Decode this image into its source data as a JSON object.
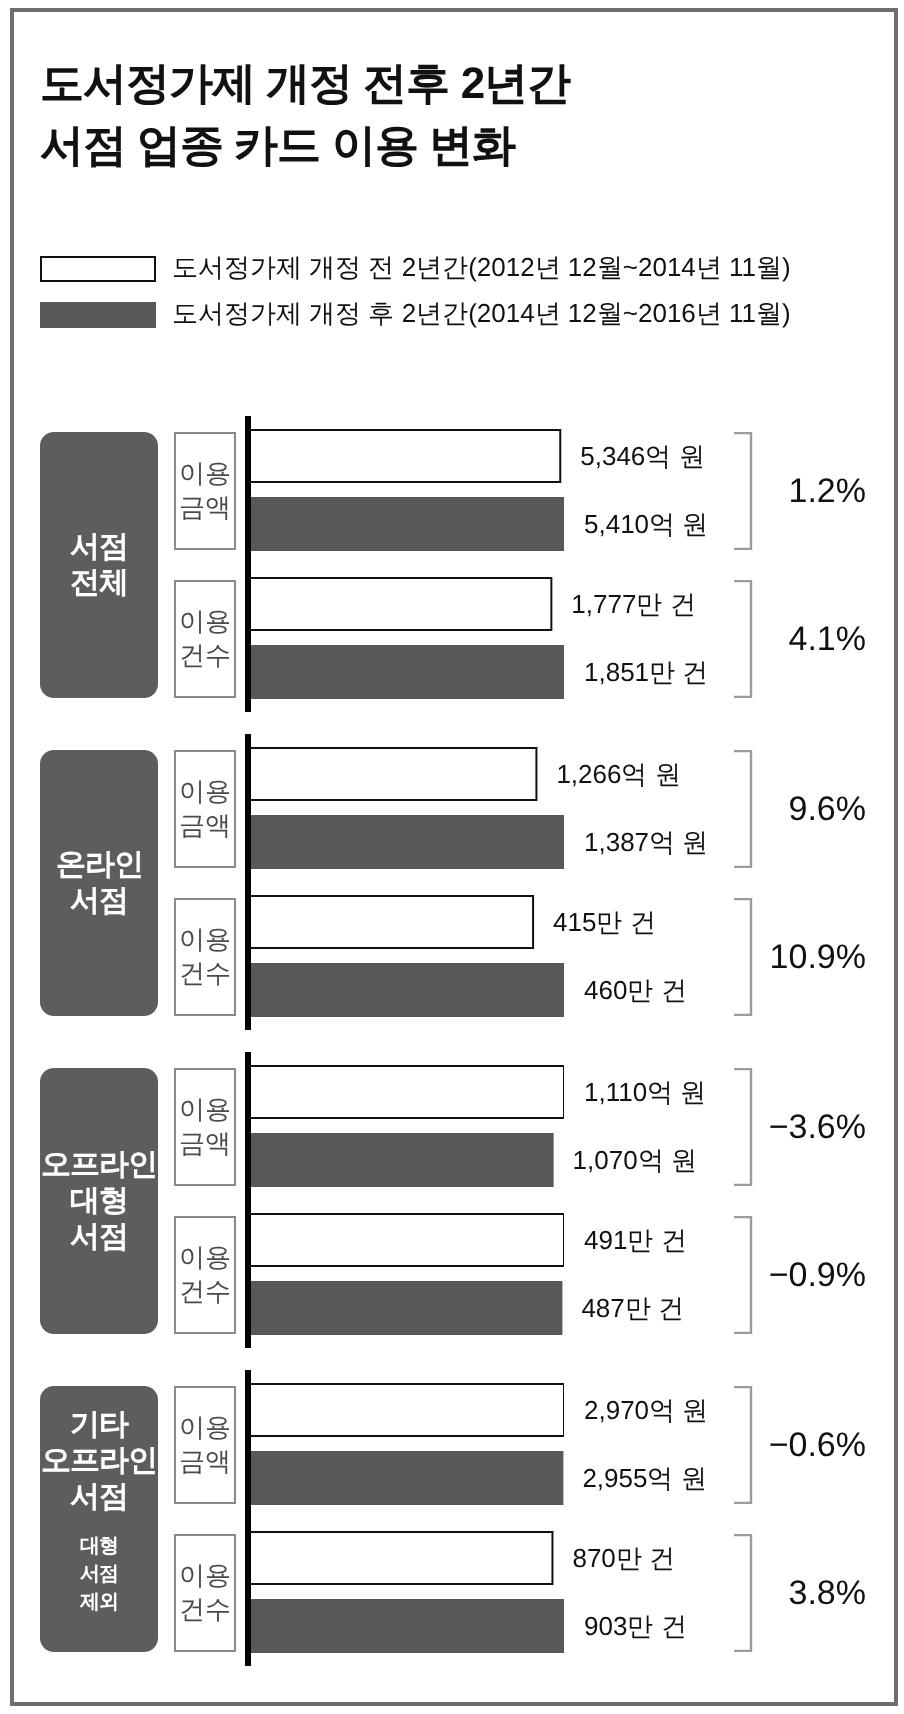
{
  "chart_data": [
    {
      "type": "bar",
      "orientation": "horizontal",
      "title": "도서정가제 개정 전후 2년간 서점 업종 카드 이용 변화",
      "legend": "top",
      "ylabel": "서점 전체",
      "categories": [
        "이용 금액"
      ],
      "series": [
        {
          "name": "도서정가제 개정 전 2년간(2012년 12월~2014년 11월)",
          "color": "#ffffff",
          "values": [
            5346
          ],
          "value_labels": [
            "5,346억 원"
          ]
        },
        {
          "name": "도서정가제 개정 후 2년간(2014년 12월~2016년 11월)",
          "color": "#5a5758",
          "values": [
            5410
          ],
          "value_labels": [
            "5,410억 원"
          ]
        }
      ],
      "annotations": [
        "1.2%"
      ]
    },
    {
      "type": "bar",
      "orientation": "horizontal",
      "categories": [
        "이용 건수"
      ],
      "series": [
        {
          "color": "#ffffff",
          "values": [
            1777
          ],
          "value_labels": [
            "1,777만 건"
          ]
        },
        {
          "color": "#5a5758",
          "values": [
            1851
          ],
          "value_labels": [
            "1,851만 건"
          ]
        }
      ],
      "annotations": [
        "4.1%"
      ]
    },
    {
      "type": "bar",
      "orientation": "horizontal",
      "ylabel": "온라인 서점",
      "categories": [
        "이용 금액"
      ],
      "series": [
        {
          "color": "#ffffff",
          "values": [
            1266
          ],
          "value_labels": [
            "1,266억 원"
          ]
        },
        {
          "color": "#5a5758",
          "values": [
            1387
          ],
          "value_labels": [
            "1,387억 원"
          ]
        }
      ],
      "annotations": [
        "9.6%"
      ]
    },
    {
      "type": "bar",
      "orientation": "horizontal",
      "categories": [
        "이용 건수"
      ],
      "series": [
        {
          "color": "#ffffff",
          "values": [
            415
          ],
          "value_labels": [
            "415만 건"
          ]
        },
        {
          "color": "#5a5758",
          "values": [
            460
          ],
          "value_labels": [
            "460만 건"
          ]
        }
      ],
      "annotations": [
        "10.9%"
      ]
    },
    {
      "type": "bar",
      "orientation": "horizontal",
      "ylabel": "오프라인 대형 서점",
      "categories": [
        "이용 금액"
      ],
      "series": [
        {
          "color": "#ffffff",
          "values": [
            1110
          ],
          "value_labels": [
            "1,110억 원"
          ]
        },
        {
          "color": "#5a5758",
          "values": [
            1070
          ],
          "value_labels": [
            "1,070억 원"
          ]
        }
      ],
      "annotations": [
        "−3.6%"
      ]
    },
    {
      "type": "bar",
      "orientation": "horizontal",
      "categories": [
        "이용 건수"
      ],
      "series": [
        {
          "color": "#ffffff",
          "values": [
            491
          ],
          "value_labels": [
            "491만 건"
          ]
        },
        {
          "color": "#5a5758",
          "values": [
            487
          ],
          "value_labels": [
            "487만 건"
          ]
        }
      ],
      "annotations": [
        "−0.9%"
      ]
    },
    {
      "type": "bar",
      "orientation": "horizontal",
      "ylabel": "기타 오프라인 서점",
      "categories": [
        "이용 금액"
      ],
      "series": [
        {
          "color": "#ffffff",
          "values": [
            2970
          ],
          "value_labels": [
            "2,970억 원"
          ]
        },
        {
          "color": "#5a5758",
          "values": [
            2955
          ],
          "value_labels": [
            "2,955억 원"
          ]
        }
      ],
      "annotations": [
        "−0.6%"
      ]
    },
    {
      "type": "bar",
      "orientation": "horizontal",
      "ylabel": "대형 서점 제외",
      "categories": [
        "이용 건수"
      ],
      "series": [
        {
          "color": "#ffffff",
          "values": [
            870
          ],
          "value_labels": [
            "870만 건"
          ]
        },
        {
          "color": "#5a5758",
          "values": [
            903
          ],
          "value_labels": [
            "903만 건"
          ]
        }
      ],
      "annotations": [
        "3.8%"
      ]
    }
  ]
}
